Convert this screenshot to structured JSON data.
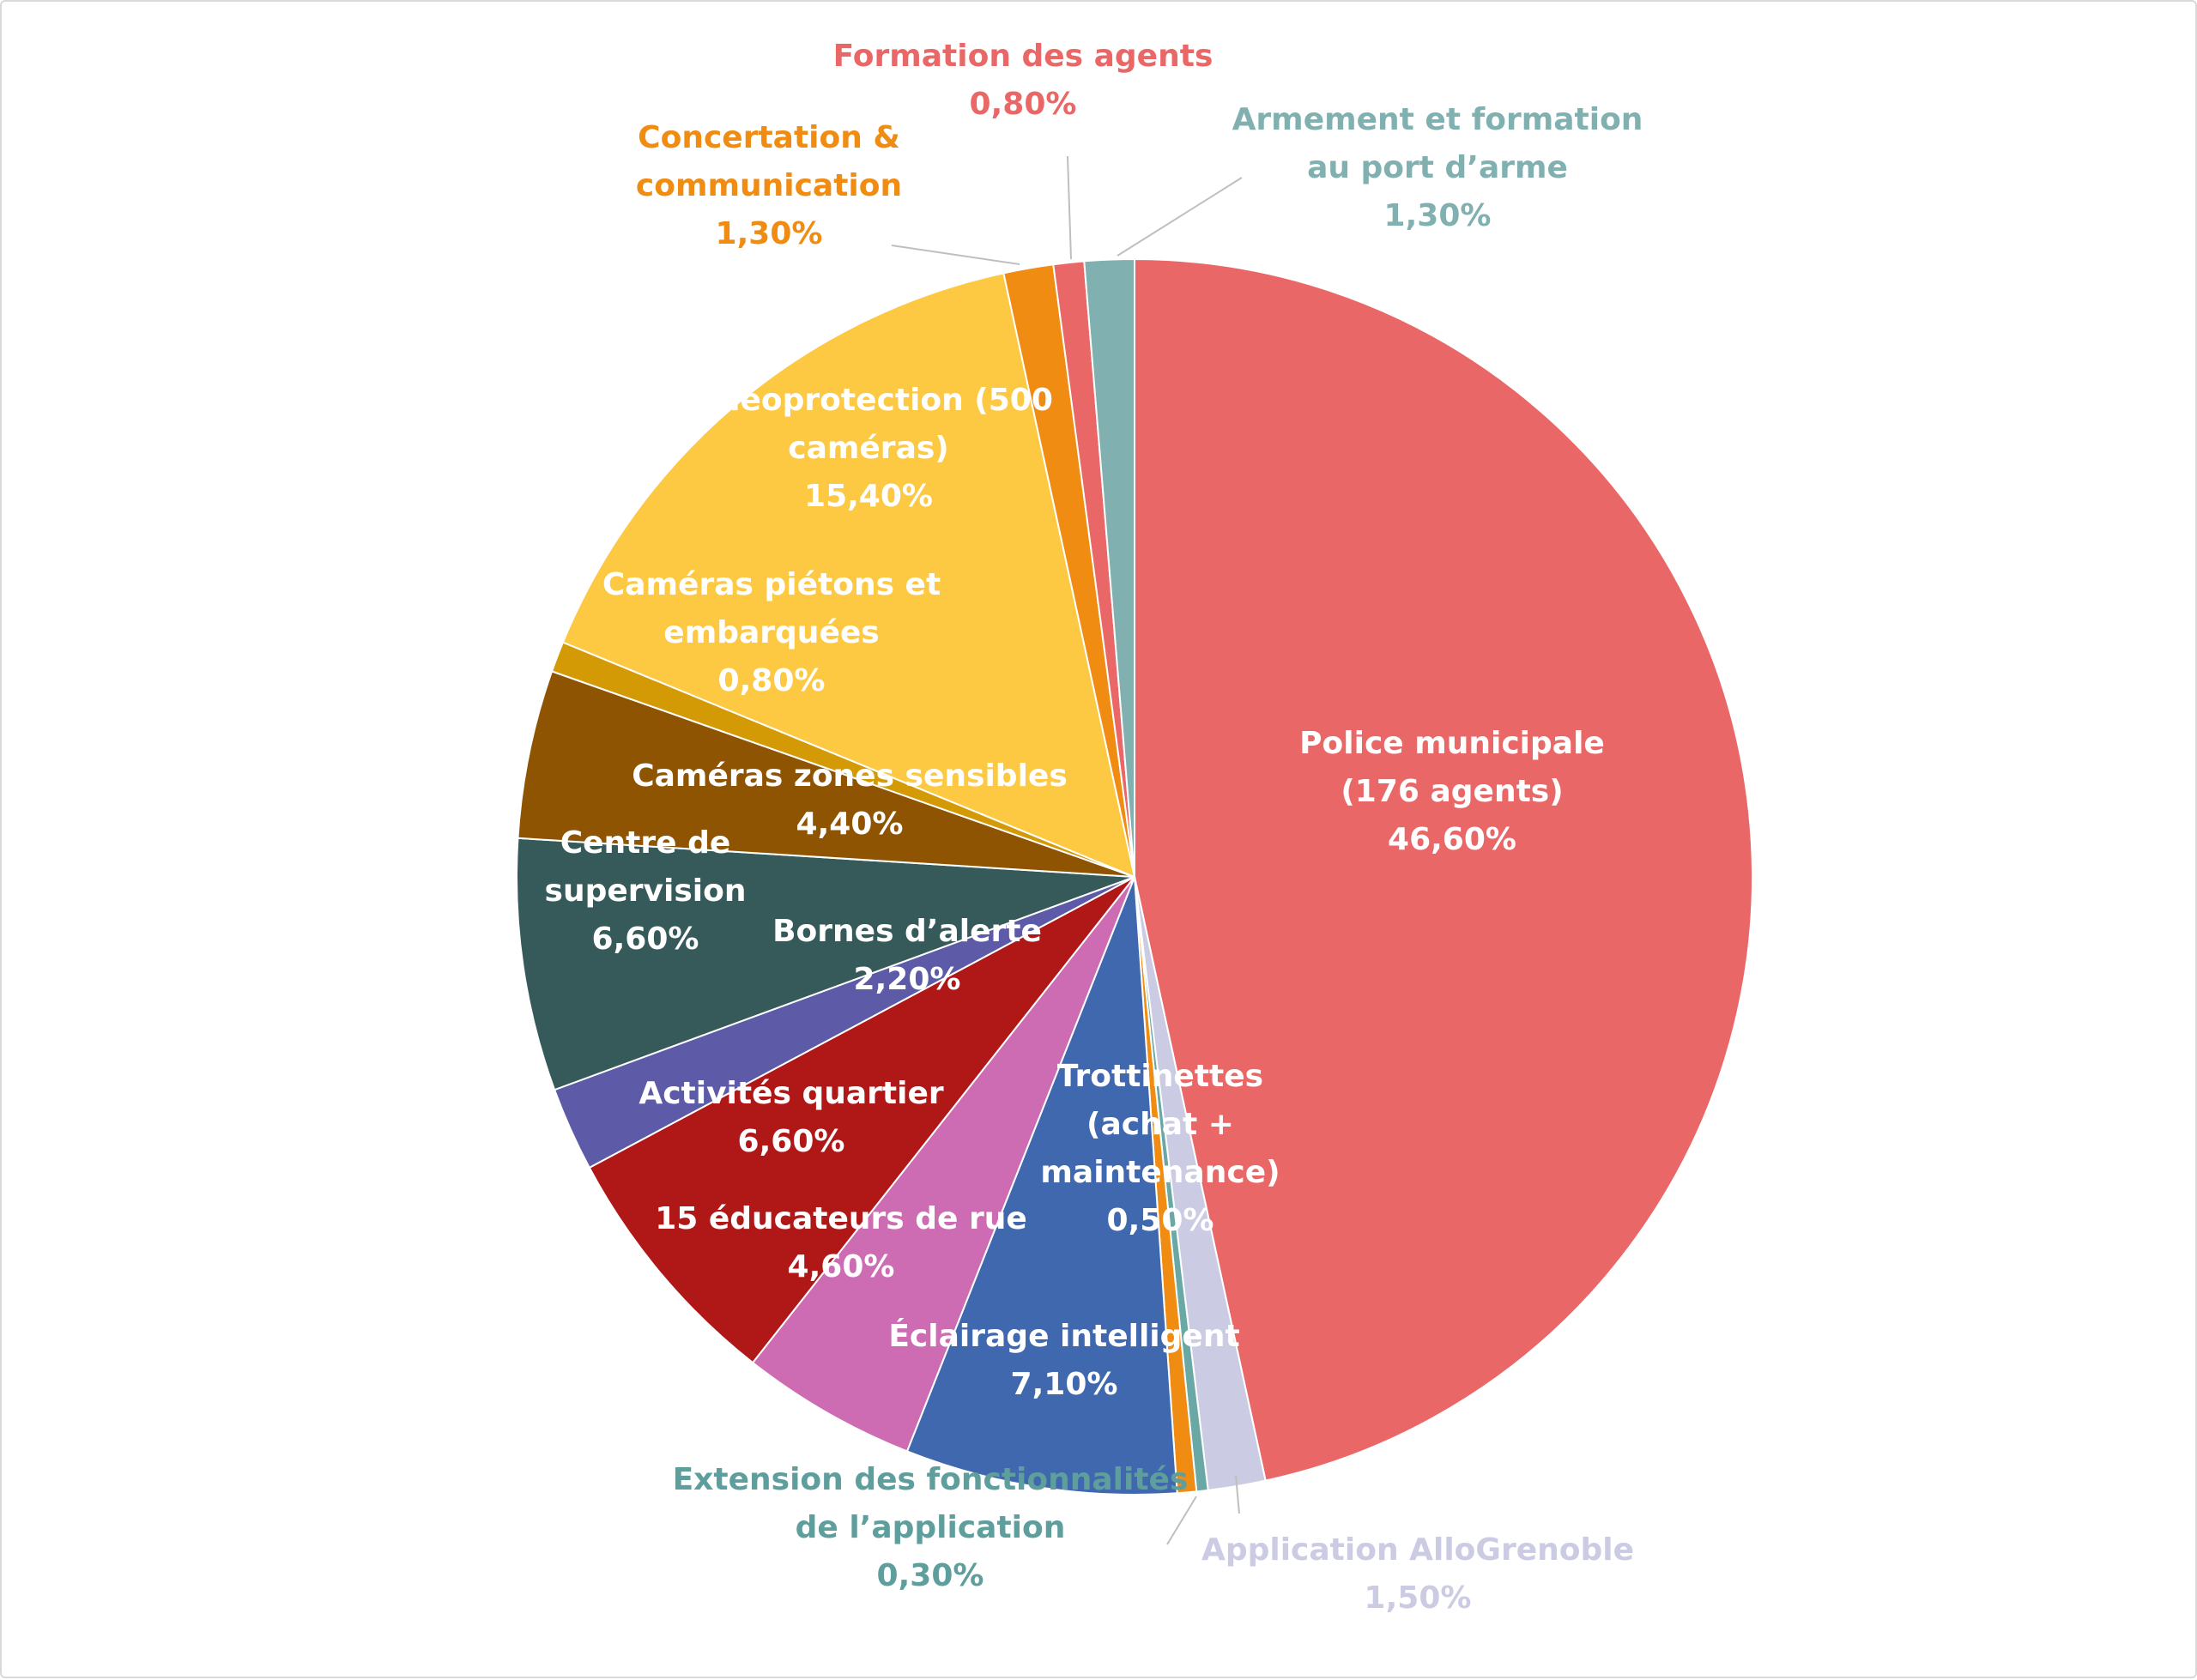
{
  "chart_data": {
    "type": "pie",
    "start_angle_deg": 0,
    "direction": "clockwise",
    "slices": [
      {
        "lines": [
          "Police municipale",
          "(176 agents)"
        ],
        "pct": "46,60%",
        "value": 46.6,
        "color": "#EA6767",
        "label_color": "#ffffff",
        "label_mode": "inside"
      },
      {
        "lines": [
          "Application AlloGrenoble"
        ],
        "pct": "1,50%",
        "value": 1.5,
        "color": "#CBCBE3",
        "label_color": "#CBCBE3",
        "label_mode": "outside"
      },
      {
        "lines": [],
        "pct": "",
        "value": 0.3,
        "color": "#6AA8A6",
        "label_color": "#6AA8A6",
        "label_mode": "outside-sibling"
      },
      {
        "lines": [
          "Trottinettes",
          "(achat +",
          "maintenance)"
        ],
        "pct": "0,50%",
        "value": 0.5,
        "color": "#F08C12",
        "label_color": "#ffffff",
        "label_mode": "inside"
      },
      {
        "lines": [
          "Éclairage intelligent"
        ],
        "pct": "7,10%",
        "value": 7.1,
        "color": "#3F68AE",
        "label_color": "#ffffff",
        "label_mode": "inside"
      },
      {
        "lines": [
          "15 éducateurs de rue"
        ],
        "pct": "4,60%",
        "value": 4.6,
        "color": "#CD6BB3",
        "label_color": "#ffffff",
        "label_mode": "inside"
      },
      {
        "lines": [
          "Activités quartier"
        ],
        "pct": "6,60%",
        "value": 6.6,
        "color": "#B01818",
        "label_color": "#ffffff",
        "label_mode": "inside"
      },
      {
        "lines": [
          "Bornes d’alerte"
        ],
        "pct": "2,20%",
        "value": 2.2,
        "color": "#5D5BA8",
        "label_color": "#ffffff",
        "label_mode": "inside"
      },
      {
        "lines": [
          "Centre de",
          "supervision"
        ],
        "pct": "6,60%",
        "value": 6.6,
        "color": "#365A5A",
        "label_color": "#ffffff",
        "label_mode": "inside"
      },
      {
        "lines": [
          "Caméras zones sensibles"
        ],
        "pct": "4,40%",
        "value": 4.4,
        "color": "#8F5402",
        "label_color": "#ffffff",
        "label_mode": "inside"
      },
      {
        "lines": [
          "Caméras piétons et",
          "embarquées"
        ],
        "pct": "0,80%",
        "value": 0.8,
        "color": "#D49A05",
        "label_color": "#ffffff",
        "label_mode": "inside"
      },
      {
        "lines": [
          "Vidéoprotection (500",
          "caméras)"
        ],
        "pct": "15,40%",
        "value": 15.4,
        "color": "#FDC942",
        "label_color": "#ffffff",
        "label_mode": "inside"
      },
      {
        "lines": [
          "Concertation &",
          "communication"
        ],
        "pct": "1,30%",
        "value": 1.3,
        "color": "#F08C12",
        "label_color": "#F08C12",
        "label_mode": "outside"
      },
      {
        "lines": [
          "Formation des agents"
        ],
        "pct": "0,80%",
        "value": 0.8,
        "color": "#EA6767",
        "label_color": "#EA6767",
        "label_mode": "outside"
      },
      {
        "lines": [
          "Armement et formation",
          "au port d’arme"
        ],
        "pct": "1,30%",
        "value": 1.3,
        "color": "#80B0B0",
        "label_color": "#80B0B0",
        "label_mode": "outside"
      }
    ],
    "extra_outside_labels": [
      {
        "lines": [
          "Extension des fonctionnalités",
          "de l’application"
        ],
        "pct": "0,30%",
        "label_color": "#5E9E9C",
        "refers_to_slice": 2
      }
    ]
  }
}
